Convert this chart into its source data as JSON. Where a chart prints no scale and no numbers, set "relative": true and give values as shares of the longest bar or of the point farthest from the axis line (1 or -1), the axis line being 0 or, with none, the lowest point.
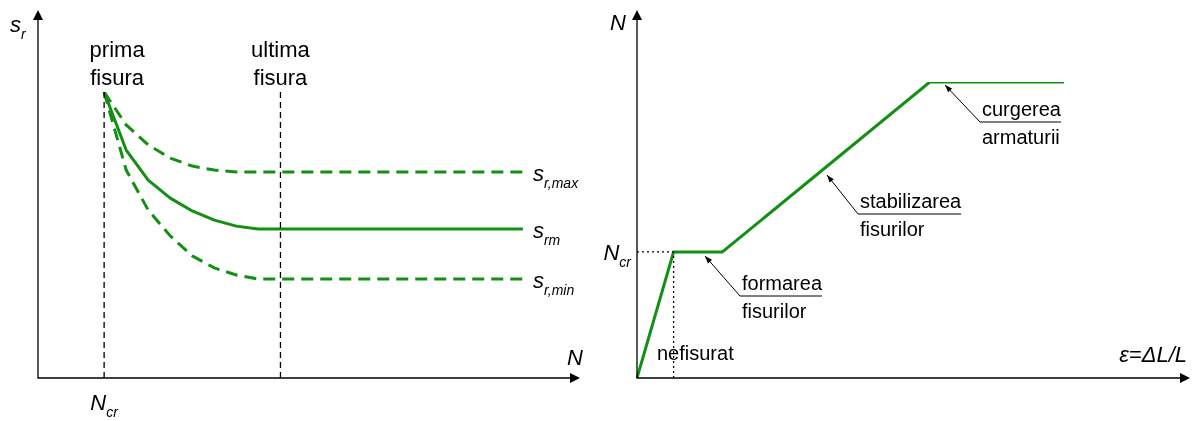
{
  "chart_data": [
    {
      "type": "line",
      "relative": true,
      "xlabel": "N",
      "ylabel": "s$_{r}$",
      "legend": false,
      "marker": "none",
      "categories": [
        null,
        null,
        null,
        null,
        null,
        null,
        null,
        null,
        null,
        null,
        null,
        null,
        null,
        null,
        null,
        null,
        null,
        null,
        null,
        null,
        null,
        null,
        null,
        null,
        null
      ],
      "series": [
        {
          "name": "s$_{r,max}$",
          "color": "#138f13",
          "line_style": "dashed",
          "values": [
            null,
            null,
            null,
            1,
            0.885,
            0.815,
            0.769,
            0.741,
            0.727,
            0.72,
            0.72,
            0.72,
            0.72,
            0.72,
            0.72,
            0.72,
            0.72,
            0.72,
            0.72,
            0.72,
            0.72,
            0.72,
            0.72,
            null,
            null
          ]
        },
        {
          "name": "s$_{rm}$",
          "color": "#138f13",
          "line_style": "solid",
          "values": [
            null,
            null,
            null,
            1,
            0.797,
            0.692,
            0.629,
            0.584,
            0.552,
            0.531,
            0.521,
            0.521,
            0.521,
            0.521,
            0.521,
            0.521,
            0.521,
            0.521,
            0.521,
            0.521,
            0.521,
            0.521,
            0.521,
            null,
            null
          ]
        },
        {
          "name": "s$_{r,min}$",
          "color": "#138f13",
          "line_style": "dashed",
          "values": [
            null,
            null,
            null,
            1,
            0.727,
            0.587,
            0.497,
            0.427,
            0.385,
            0.36,
            0.346,
            0.346,
            0.346,
            0.346,
            0.346,
            0.346,
            0.346,
            0.346,
            0.346,
            0.346,
            0.346,
            0.346,
            0.346,
            null,
            null
          ]
        }
      ],
      "annotations": [
        "prima\nfisura",
        "ultima\nfisura",
        "N$_{cr}$"
      ]
    },
    {
      "type": "line",
      "relative": true,
      "xlabel": "ε=ΔL/L",
      "ylabel": "N",
      "legend": false,
      "marker": "none",
      "categories": [
        null,
        null,
        null,
        null,
        null,
        null,
        null,
        null,
        null,
        null,
        null,
        null,
        null,
        null,
        null,
        null,
        null,
        null,
        null,
        null,
        null,
        null,
        null,
        null,
        null,
        null,
        null,
        null,
        null,
        null,
        null,
        null,
        null,
        null,
        null,
        null,
        null,
        null,
        null,
        null,
        null,
        null,
        null,
        null,
        null,
        null
      ],
      "series": [
        {
          "color": "#138f13",
          "line_style": "solid",
          "values": [
            0,
            null,
            null,
            0.426,
            null,
            null,
            null,
            0.426,
            null,
            null,
            null,
            null,
            null,
            null,
            null,
            null,
            null,
            null,
            null,
            null,
            null,
            null,
            null,
            null,
            1,
            null,
            null,
            null,
            null,
            null,
            null,
            null,
            null,
            null,
            null,
            1,
            null,
            null,
            null,
            null,
            null,
            null,
            null,
            null,
            null,
            null
          ]
        }
      ],
      "ref_lines": [
        {
          "axis": "y",
          "value": 0.426,
          "label": "N$_{cr}$",
          "color": "#000000",
          "line_style": "dotted"
        }
      ],
      "annotations": [
        "nefisurat",
        "formarea\nfisurilor",
        "stabilizarea\nfisurilor",
        "curgerea\narmaturii"
      ]
    }
  ]
}
